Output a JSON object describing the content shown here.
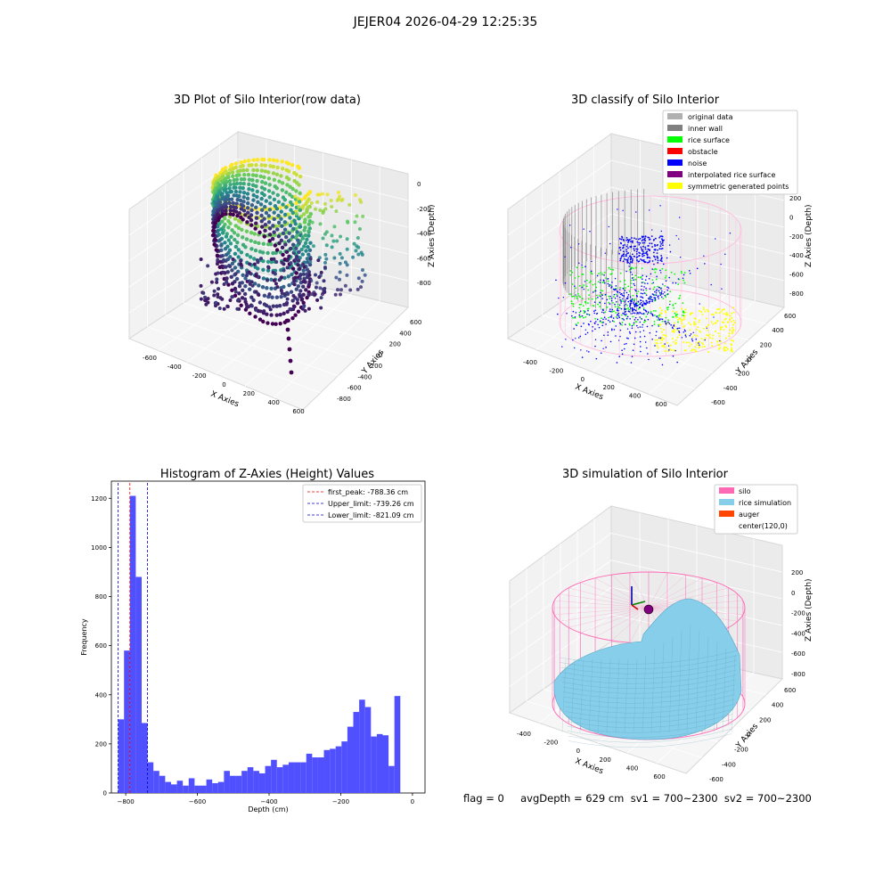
{
  "figure": {
    "suptitle": "JEJER04 2026-04-29 12:25:35",
    "footer": "flag = 0     avgDepth = 629 cm  sv1 = 700~2300  sv2 = 700~2300"
  },
  "colors": {
    "hist_bar": "#5050ff",
    "peak_line": "#ff0000",
    "limit_line": "#0000cc",
    "silo": "#ff69b4",
    "rice": "#87ceeb",
    "auger": "#ff4500",
    "noise": "#0000ff",
    "inner_wall": "#808080",
    "rice_surface": "#00ff00",
    "symmetric": "#ffff00"
  },
  "chart_data": [
    {
      "type": "scatter3d",
      "title": "3D Plot of Silo Interior(row data)",
      "xlabel": "X Axies",
      "ylabel": "Y Axies",
      "zlabel": "Z Axies (Depth)",
      "xticks": [
        "-600",
        "-400",
        "-200",
        "0",
        "200",
        "400",
        "600"
      ],
      "yticks": [
        "-800",
        "-600",
        "-400",
        "-200",
        "0",
        "200",
        "400",
        "600"
      ],
      "zticks": [
        "0",
        "-200",
        "-400",
        "-600",
        "-800"
      ],
      "colormap": "viridis"
    },
    {
      "type": "scatter3d",
      "title": "3D classify of Silo Interior",
      "xlabel": "X Axies",
      "ylabel": "Y Axies",
      "zlabel": "Z Axies (Depth)",
      "xticks": [
        "-400",
        "-200",
        "0",
        "200",
        "400",
        "600"
      ],
      "yticks": [
        "-600",
        "-400",
        "-200",
        "0",
        "200",
        "400",
        "600"
      ],
      "zticks": [
        "200",
        "0",
        "-200",
        "-400",
        "-600",
        "-800"
      ],
      "legend": [
        {
          "label": "original data",
          "color": "#b0b0b0"
        },
        {
          "label": "inner wall",
          "color": "#808080"
        },
        {
          "label": "rice surface",
          "color": "#00ff00"
        },
        {
          "label": "obstacle",
          "color": "#ff0000"
        },
        {
          "label": "noise",
          "color": "#0000ff"
        },
        {
          "label": "interpolated rice surface",
          "color": "#800080"
        },
        {
          "label": "symmetric generated points",
          "color": "#ffff00"
        }
      ],
      "legend_position": "top-right"
    },
    {
      "type": "bar",
      "title": "Histogram of Z-Axies (Height) Values",
      "xlabel": "Depth (cm)",
      "ylabel": "Frequency",
      "xlim": [
        -840,
        35
      ],
      "ylim": [
        0,
        1270
      ],
      "xticks": [
        -800,
        -600,
        -400,
        -200,
        0
      ],
      "yticks": [
        0,
        200,
        400,
        600,
        800,
        1000,
        1200
      ],
      "bin_width": 16.4,
      "bin_start": -821.09,
      "values": [
        300,
        580,
        1210,
        880,
        285,
        125,
        90,
        70,
        45,
        35,
        50,
        30,
        60,
        30,
        30,
        55,
        40,
        45,
        90,
        70,
        70,
        90,
        105,
        90,
        80,
        110,
        135,
        105,
        115,
        125,
        125,
        125,
        160,
        145,
        145,
        175,
        180,
        190,
        210,
        270,
        330,
        380,
        350,
        230,
        240,
        235,
        110,
        395
      ],
      "lines": [
        {
          "label": "first_peak: -788.36 cm",
          "x": -788.36,
          "color": "#ff0000"
        },
        {
          "label": "Upper_limit: -739.26 cm",
          "x": -739.26,
          "color": "#0000cc"
        },
        {
          "label": "Lower_limit: -821.09 cm",
          "x": -821.09,
          "color": "#0000cc"
        }
      ],
      "legend_position": "top-right"
    },
    {
      "type": "surface3d",
      "title": "3D simulation of Silo Interior",
      "xlabel": "X Axies",
      "ylabel": "Y Axies",
      "zlabel": "Z Axies (Depth)",
      "xticks": [
        "-400",
        "-200",
        "0",
        "200",
        "400",
        "600"
      ],
      "yticks": [
        "-600",
        "-400",
        "-200",
        "0",
        "200",
        "400",
        "600"
      ],
      "zticks": [
        "200",
        "0",
        "-200",
        "-400",
        "-600",
        "-800"
      ],
      "legend": [
        {
          "label": "silo",
          "color": "#ff69b4"
        },
        {
          "label": "rice simulation",
          "color": "#87ceeb"
        },
        {
          "label": "auger",
          "color": "#ff4500"
        },
        {
          "label": "center(120,0)",
          "color": ""
        }
      ],
      "legend_position": "top-right"
    }
  ]
}
